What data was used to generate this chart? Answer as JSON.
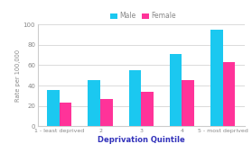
{
  "categories": [
    "1 - least deprived",
    "2",
    "3",
    "4",
    "5 - most deprived"
  ],
  "male_values": [
    36,
    45,
    55,
    71,
    95
  ],
  "female_values": [
    23,
    27,
    34,
    45,
    63
  ],
  "male_color": "#1BC8F0",
  "female_color": "#FF3399",
  "xlabel": "Deprivation Quintile",
  "ylabel": "Rate per 100,000",
  "ylim": [
    0,
    100
  ],
  "yticks": [
    0,
    20,
    40,
    60,
    80,
    100
  ],
  "legend_male": "Male",
  "legend_female": "Female",
  "bg_color": "#ffffff",
  "grid_color": "#cccccc",
  "xlabel_color": "#3333bb",
  "tick_label_color": "#888888",
  "ylabel_color": "#888888"
}
